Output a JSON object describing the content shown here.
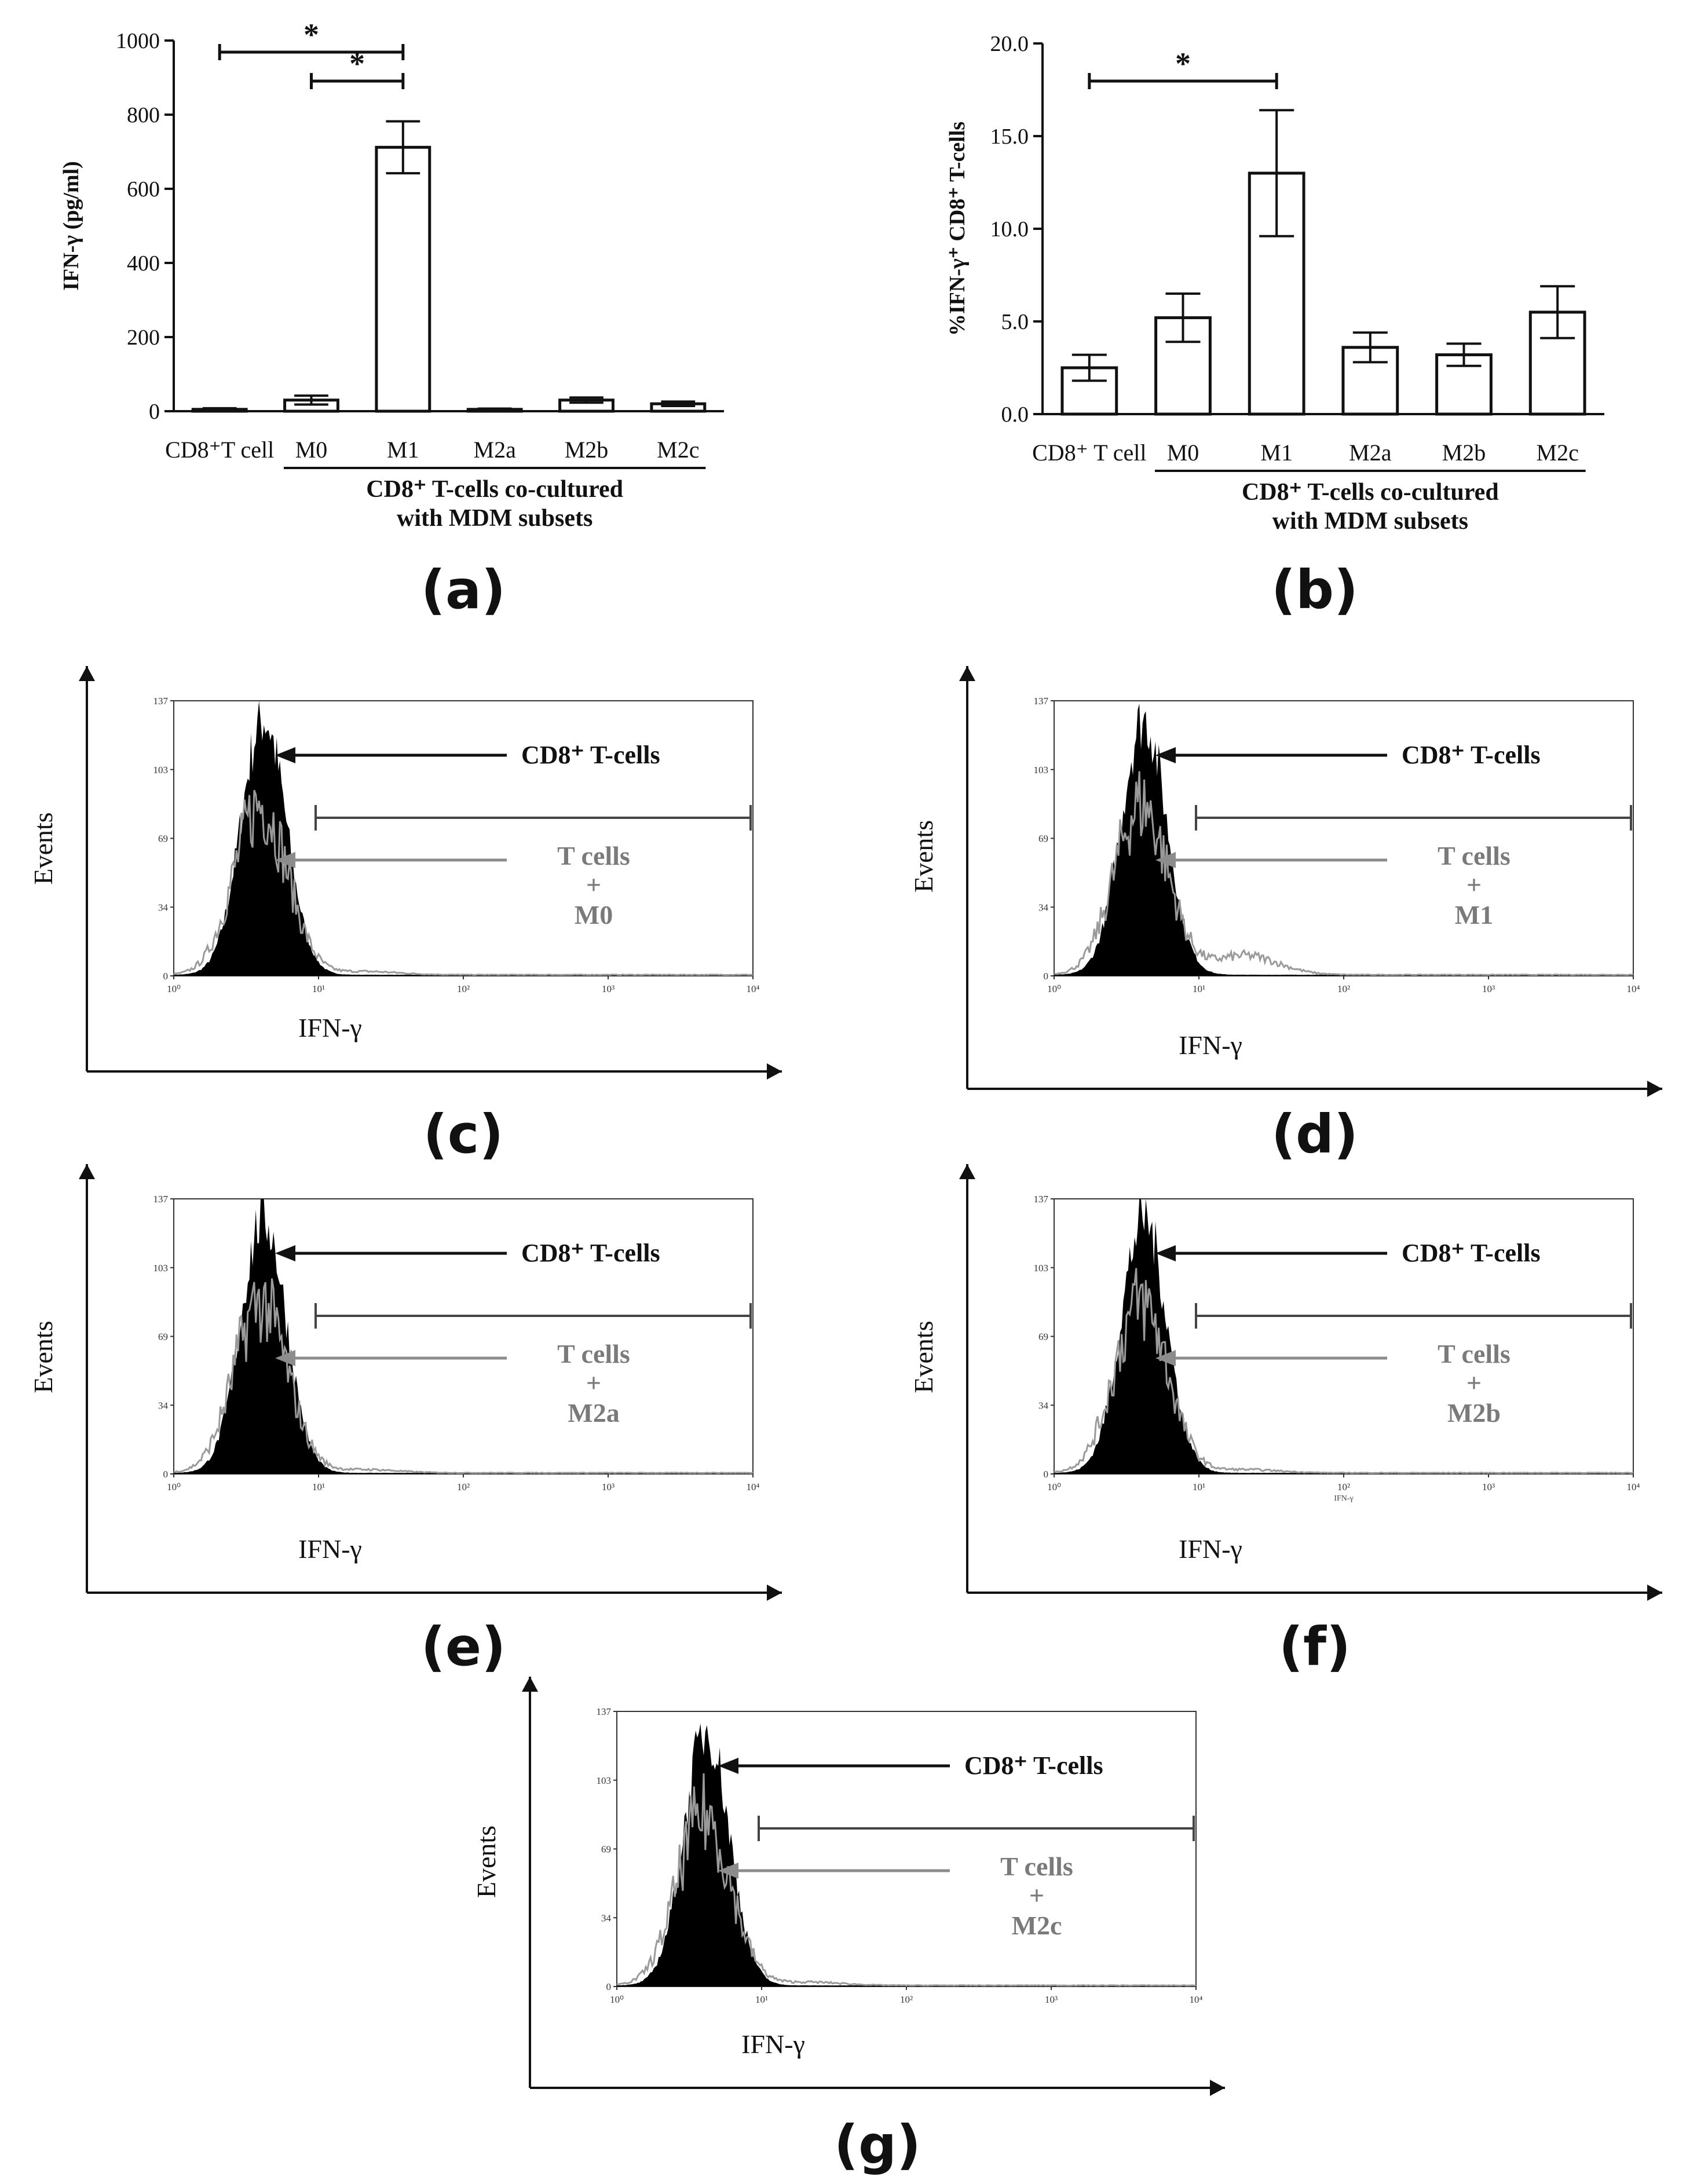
{
  "chart_data": [
    {
      "panel": "(a)",
      "type": "bar",
      "ylabel": "IFN-γ (pg/ml)",
      "ylim": [
        0,
        1000
      ],
      "yticks": [
        0,
        200,
        400,
        600,
        800,
        1000
      ],
      "categories": [
        "CD8⁺T  cell",
        "M0",
        "M1",
        "M2a",
        "M2b",
        "M2c"
      ],
      "values": [
        5,
        30,
        712,
        5,
        30,
        20
      ],
      "errors": [
        3,
        12,
        70,
        2,
        7,
        6
      ],
      "group_label_line1": "CD8⁺ T-cells co-cultured",
      "group_label_line2": "with MDM subsets",
      "significance": [
        {
          "from": 0,
          "to": 2,
          "label": "*",
          "y": 970
        },
        {
          "from": 1,
          "to": 2,
          "label": "*",
          "y": 870
        }
      ],
      "grid": false
    },
    {
      "panel": "(b)",
      "type": "bar",
      "ylabel": "%IFN-γ⁺ CD8⁺ T-cells",
      "ylim": [
        0,
        20
      ],
      "yticks": [
        0,
        5,
        10,
        15,
        20
      ],
      "categories": [
        "CD8⁺ T  cell",
        "M0",
        "M1",
        "M2a",
        "M2b",
        "M2c"
      ],
      "values": [
        2.5,
        5.2,
        13.0,
        3.6,
        3.2,
        5.5
      ],
      "errors": [
        0.7,
        1.3,
        3.4,
        0.8,
        0.6,
        1.4
      ],
      "group_label_line1": "CD8⁺ T-cells co-cultured",
      "group_label_line2": "with MDM subsets",
      "significance": [
        {
          "from": 0,
          "to": 2,
          "label": "*",
          "y": 18
        }
      ],
      "grid": false
    }
  ],
  "histograms": [
    {
      "panel": "(c)",
      "sample": "M0",
      "ylabel": "Events",
      "xlabel": "IFN-γ",
      "yticks": [
        "0",
        "34",
        "69",
        "103",
        "137"
      ],
      "xticks": [
        "10⁰",
        "10¹",
        "10²",
        "10³",
        "10⁴"
      ],
      "control_label": "CD8⁺ T-cells",
      "line1": "T cells",
      "line2": "+",
      "line3": "M0",
      "inner_axis_label": ""
    },
    {
      "panel": "(d)",
      "sample": "M1",
      "ylabel": "Events",
      "xlabel": "IFN-γ",
      "yticks": [
        "0",
        "34",
        "69",
        "103",
        "137"
      ],
      "xticks": [
        "10⁰",
        "10¹",
        "10²",
        "10³",
        "10⁴"
      ],
      "control_label": "CD8⁺ T-cells",
      "line1": "T cells",
      "line2": "+",
      "line3": "M1",
      "inner_axis_label": ""
    },
    {
      "panel": "(e)",
      "sample": "M2a",
      "ylabel": "Events",
      "xlabel": "IFN-γ",
      "yticks": [
        "0",
        "34",
        "69",
        "103",
        "137"
      ],
      "xticks": [
        "10⁰",
        "10¹",
        "10²",
        "10³",
        "10⁴"
      ],
      "control_label": "CD8⁺ T-cells",
      "line1": "T cells",
      "line2": "+",
      "line3": "M2a",
      "inner_axis_label": ""
    },
    {
      "panel": "(f)",
      "sample": "M2b",
      "ylabel": "Events",
      "xlabel": "IFN-γ",
      "yticks": [
        "0",
        "34",
        "69",
        "103",
        "137"
      ],
      "xticks": [
        "10⁰",
        "10¹",
        "10²",
        "10³",
        "10⁴"
      ],
      "control_label": "CD8⁺ T-cells",
      "line1": "T cells",
      "line2": "+",
      "line3": "M2b",
      "inner_axis_label": "IFN-γ"
    },
    {
      "panel": "(g)",
      "sample": "M2c",
      "ylabel": "Events",
      "xlabel": "IFN-γ",
      "yticks": [
        "0",
        "34",
        "69",
        "103",
        "137"
      ],
      "xticks": [
        "10⁰",
        "10¹",
        "10²",
        "10³",
        "10⁴"
      ],
      "control_label": "CD8⁺ T-cells",
      "line1": "T cells",
      "line2": "+",
      "line3": "M2c",
      "inner_axis_label": ""
    }
  ]
}
